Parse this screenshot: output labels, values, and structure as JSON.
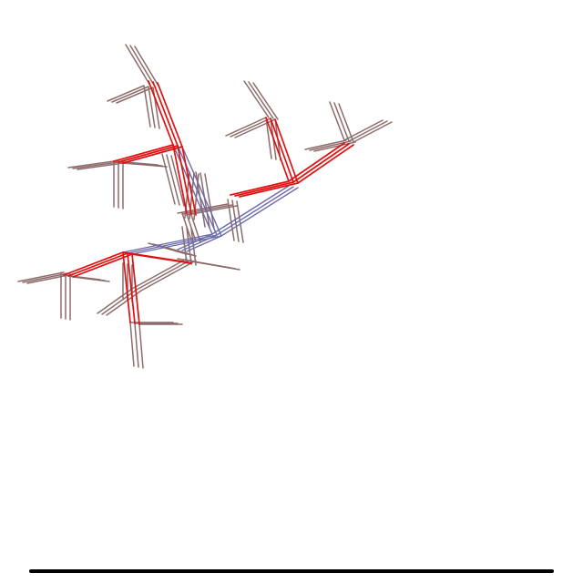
{
  "colors": {
    "background": "#ffffff",
    "branch": "#8d6b6b",
    "highlight": "#e01010",
    "connector": "#6b6ba8",
    "rule": "#000000"
  },
  "diagram": {
    "type": "molecular-structure-wireframe",
    "ensemble_copies": 3,
    "highlighted_path": "red",
    "secondary_path": "blue-gray"
  }
}
